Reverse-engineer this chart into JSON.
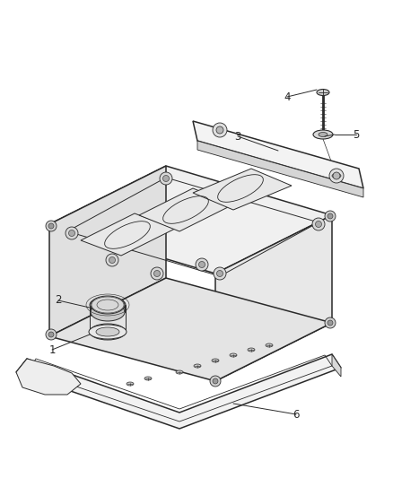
{
  "bg_color": "#ffffff",
  "lc": "#2a2a2a",
  "lc_thin": "#444444",
  "face_top": "#f0f0f0",
  "face_side_l": "#e0e0e0",
  "face_side_r": "#e8e8e8",
  "face_cover": "#f5f5f5",
  "face_lower": "#f0f0f0",
  "figsize": [
    4.38,
    5.33
  ],
  "dpi": 100,
  "label_fs": 8.5,
  "lw_main": 1.1,
  "lw_thin": 0.7,
  "lw_label": 0.7
}
